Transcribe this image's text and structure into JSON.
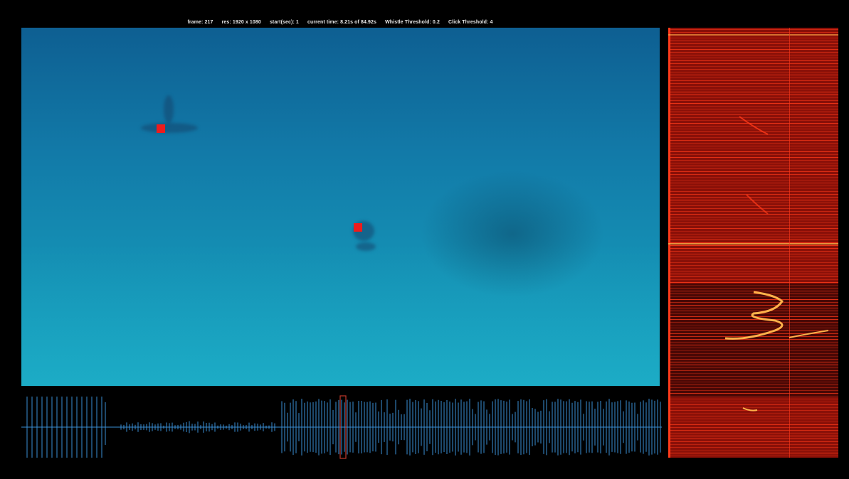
{
  "info_bar": {
    "frame": "frame: 217",
    "res": "res: 1920 x 1080",
    "start": "start(sec): 1",
    "current_time": "current time: 8.21s of 84.92s",
    "whistle_threshold": "Whistle Threshold: 0.2",
    "click_threshold": "Click Threshold: 4"
  },
  "colors": {
    "background": "#000000",
    "marker": "#ee1c1c",
    "waveform": "#3a8fd6",
    "playhead": "#c0392b",
    "spectrogram_base": "#8a1008",
    "spectrogram_line": "#ff3a1a",
    "spectrogram_highlight": "#ffb24a"
  },
  "detections": [
    {
      "label": "dolphin-marker-1"
    },
    {
      "label": "dolphin-marker-2"
    }
  ]
}
